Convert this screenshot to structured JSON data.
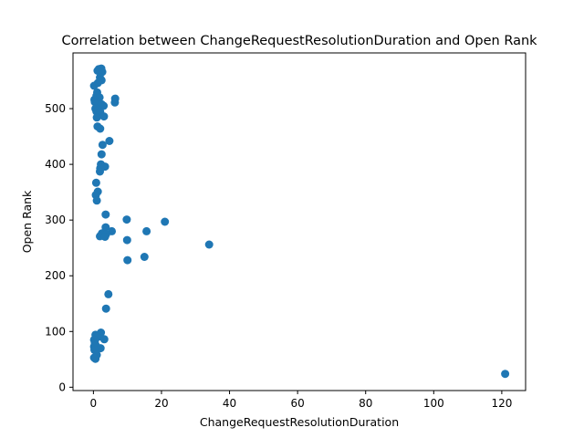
{
  "chart_data": {
    "type": "scatter",
    "title": "Correlation between ChangeRequestResolutionDuration and Open Rank",
    "xlabel": "ChangeRequestResolutionDuration",
    "ylabel": "Open Rank",
    "xlim": [
      -6,
      127
    ],
    "ylim": [
      -6,
      600
    ],
    "xticks": [
      0,
      20,
      40,
      60,
      80,
      100,
      120
    ],
    "yticks": [
      0,
      100,
      200,
      300,
      400,
      500
    ],
    "grid": false,
    "marker_color": "#1f77b4",
    "series": [
      {
        "name": "Open Rank",
        "points": [
          [
            1.6,
            571
          ],
          [
            2.3,
            572
          ],
          [
            1.2,
            568
          ],
          [
            2.6,
            566
          ],
          [
            1.9,
            556
          ],
          [
            2.4,
            551
          ],
          [
            1.3,
            546
          ],
          [
            0.2,
            541
          ],
          [
            1.1,
            529
          ],
          [
            0.9,
            523
          ],
          [
            1.8,
            520
          ],
          [
            6.4,
            518
          ],
          [
            6.3,
            511
          ],
          [
            0.3,
            516
          ],
          [
            0.4,
            512
          ],
          [
            1.2,
            510
          ],
          [
            2.4,
            508
          ],
          [
            3.0,
            505
          ],
          [
            0.6,
            500
          ],
          [
            1.5,
            498
          ],
          [
            0.9,
            495
          ],
          [
            2.0,
            494
          ],
          [
            3.1,
            486
          ],
          [
            1.0,
            484
          ],
          [
            1.2,
            468
          ],
          [
            2.0,
            464
          ],
          [
            4.7,
            442
          ],
          [
            2.7,
            435
          ],
          [
            2.4,
            418
          ],
          [
            2.2,
            400
          ],
          [
            3.4,
            396
          ],
          [
            2.0,
            393
          ],
          [
            1.9,
            387
          ],
          [
            0.8,
            367
          ],
          [
            1.3,
            351
          ],
          [
            0.7,
            345
          ],
          [
            1.0,
            335
          ],
          [
            3.6,
            310
          ],
          [
            9.8,
            301
          ],
          [
            21.0,
            297
          ],
          [
            3.6,
            287
          ],
          [
            15.6,
            280
          ],
          [
            5.4,
            280
          ],
          [
            2.5,
            276
          ],
          [
            3.7,
            274
          ],
          [
            1.9,
            271
          ],
          [
            3.4,
            270
          ],
          [
            9.9,
            264
          ],
          [
            34.0,
            256
          ],
          [
            15.0,
            234
          ],
          [
            10.0,
            228
          ],
          [
            4.4,
            167
          ],
          [
            3.7,
            141
          ],
          [
            0.6,
            94
          ],
          [
            2.2,
            98
          ],
          [
            1.2,
            90
          ],
          [
            0.2,
            85
          ],
          [
            3.2,
            86
          ],
          [
            0.4,
            80
          ],
          [
            0.2,
            73
          ],
          [
            0.7,
            75
          ],
          [
            2.1,
            70
          ],
          [
            0.3,
            67
          ],
          [
            1.0,
            58
          ],
          [
            0.2,
            53
          ],
          [
            0.6,
            51
          ],
          [
            121.0,
            24
          ]
        ]
      }
    ]
  }
}
